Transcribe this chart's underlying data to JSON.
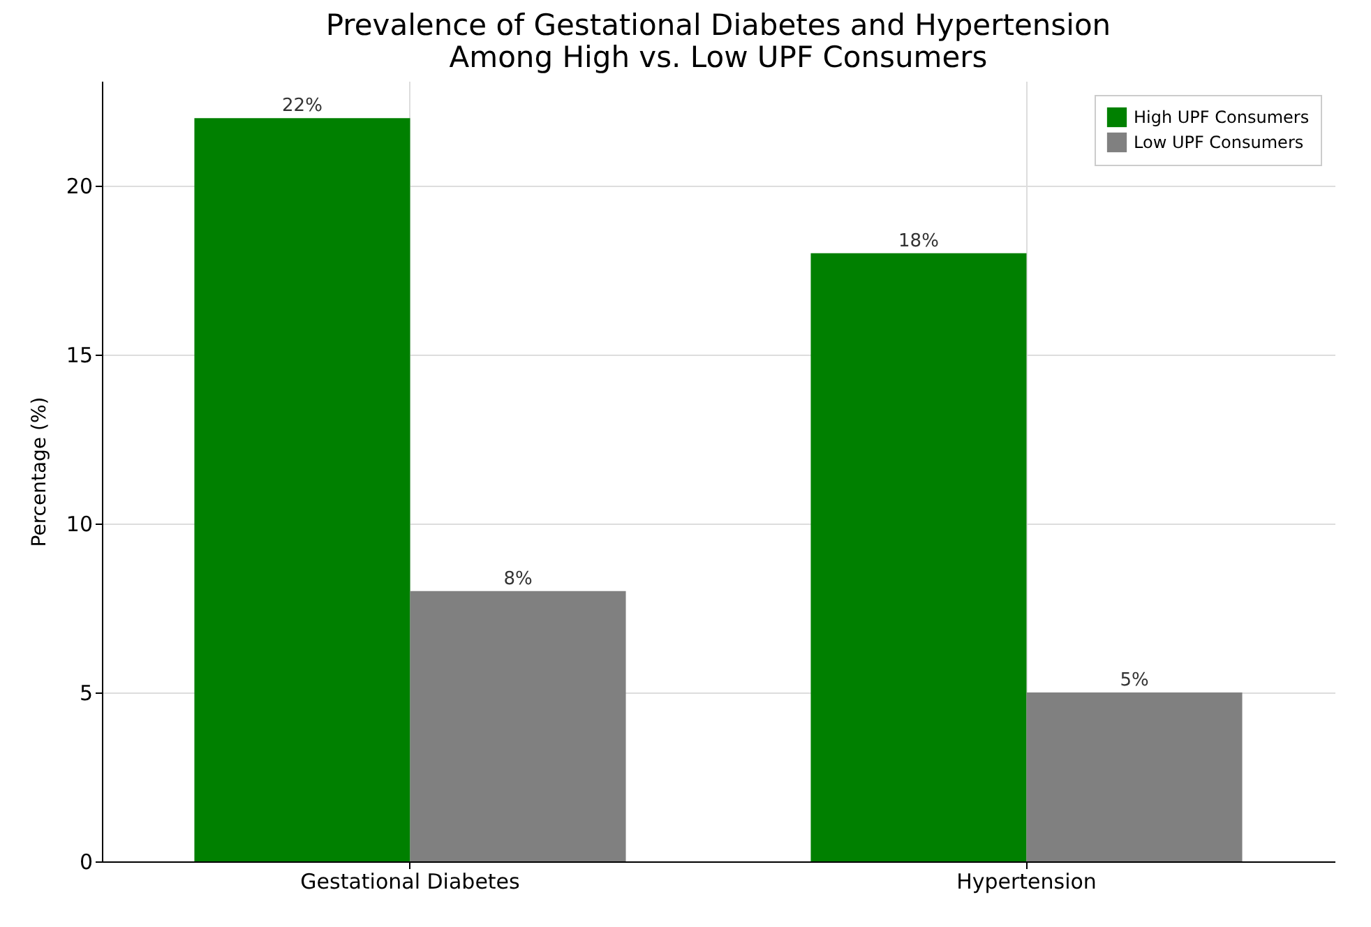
{
  "chart_data": {
    "type": "bar",
    "title": "Prevalence of Gestational Diabetes and Hypertension\nAmong High vs. Low UPF Consumers",
    "ylabel": "Percentage (%)",
    "categories": [
      "Gestational Diabetes",
      "Hypertension"
    ],
    "series": [
      {
        "name": "High UPF Consumers",
        "color": "#008000",
        "values": [
          22,
          18
        ],
        "value_labels": [
          "22%",
          "18%"
        ]
      },
      {
        "name": "Low UPF Consumers",
        "color": "#808080",
        "values": [
          8,
          5
        ],
        "value_labels": [
          "8%",
          "5%"
        ]
      }
    ],
    "ylim": [
      0,
      23.1
    ],
    "yticks": [
      0,
      5,
      10,
      15,
      20
    ],
    "grid": true,
    "legend": "top right"
  }
}
